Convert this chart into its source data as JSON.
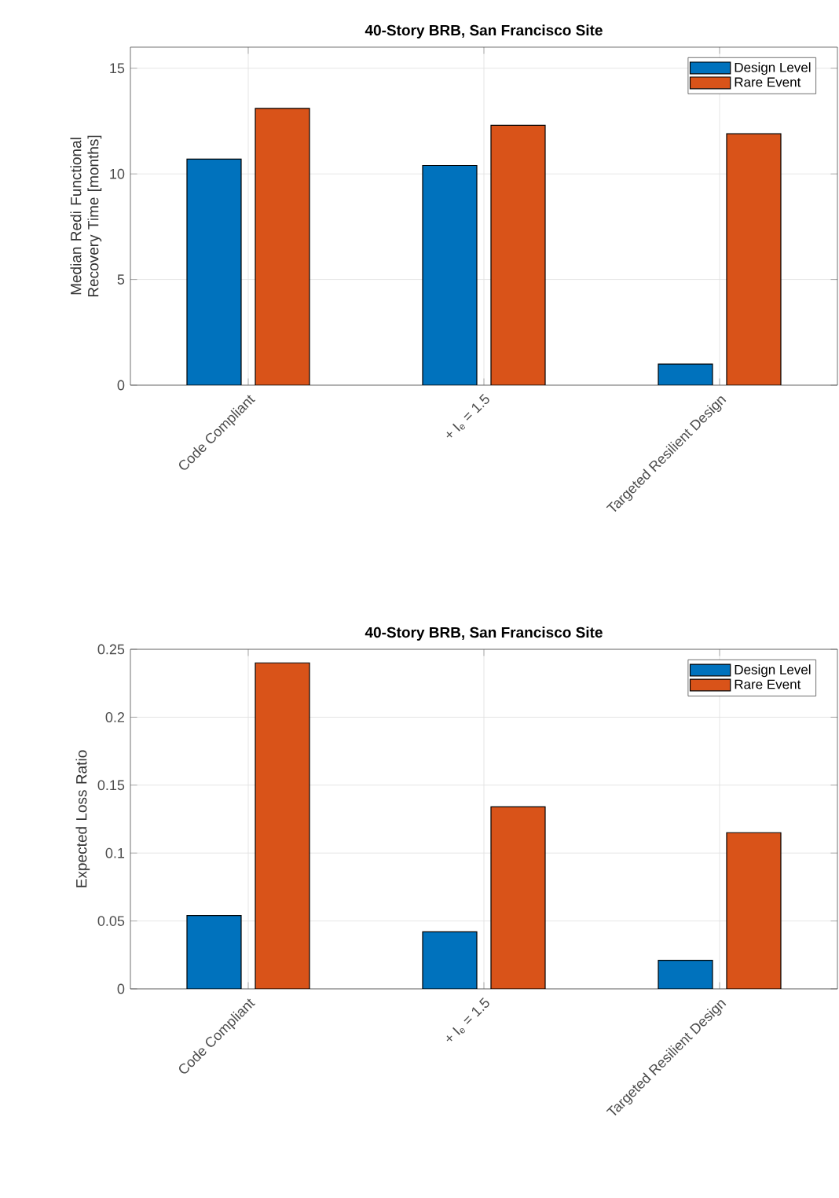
{
  "chart_data": [
    {
      "type": "bar",
      "title": "40-Story BRB, San Francisco Site",
      "ylabel": "Median Redi Functional Recovery Time [months]",
      "categories": [
        "Code Compliant",
        "+ I$_{e}$ = 1.5",
        "Targeted Resilient Design"
      ],
      "series": [
        {
          "name": "Design Level",
          "color": "#0072bd",
          "values": [
            10.7,
            10.4,
            1.0
          ]
        },
        {
          "name": "Rare Event",
          "color": "#d95319",
          "values": [
            13.1,
            12.3,
            11.9
          ]
        }
      ],
      "ylim": [
        0,
        16
      ],
      "yticks": [
        0,
        5,
        10,
        15
      ],
      "grid": true,
      "legend": "top right"
    },
    {
      "type": "bar",
      "title": "40-Story BRB, San Francisco Site",
      "ylabel": "Expected Loss Ratio",
      "categories": [
        "Code Compliant",
        "+ I$_{e}$ = 1.5",
        "Targeted Resilient Design"
      ],
      "series": [
        {
          "name": "Design Level",
          "color": "#0072bd",
          "values": [
            0.054,
            0.042,
            0.021
          ]
        },
        {
          "name": "Rare Event",
          "color": "#d95319",
          "values": [
            0.24,
            0.134,
            0.115
          ]
        }
      ],
      "ylim": [
        0,
        0.25
      ],
      "yticks": [
        0,
        0.05,
        0.1,
        0.15,
        0.2,
        0.25
      ],
      "grid": true,
      "legend": "top right"
    }
  ]
}
